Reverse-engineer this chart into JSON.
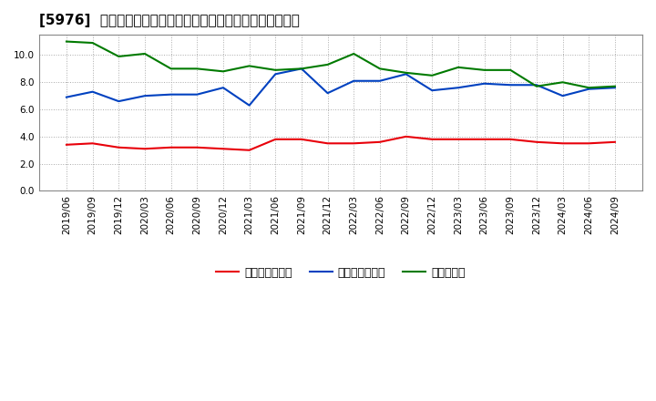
{
  "title": "[5976]  売上債権回転率、買入債務回転率、在庫回転率の推移",
  "x_labels": [
    "2019/06",
    "2019/09",
    "2019/12",
    "2020/03",
    "2020/06",
    "2020/09",
    "2020/12",
    "2021/03",
    "2021/06",
    "2021/09",
    "2021/12",
    "2022/03",
    "2022/06",
    "2022/09",
    "2022/12",
    "2023/03",
    "2023/06",
    "2023/09",
    "2023/12",
    "2024/03",
    "2024/06",
    "2024/09"
  ],
  "sales_receivables": [
    3.4,
    3.5,
    3.2,
    3.1,
    3.2,
    3.2,
    3.1,
    3.0,
    3.8,
    3.8,
    3.5,
    3.5,
    3.6,
    4.0,
    3.8,
    3.8,
    3.8,
    3.8,
    3.6,
    3.5,
    3.5,
    3.6
  ],
  "payables": [
    6.9,
    7.3,
    6.6,
    7.0,
    7.1,
    7.1,
    7.6,
    6.3,
    8.6,
    9.0,
    7.2,
    8.1,
    8.1,
    8.6,
    7.4,
    7.6,
    7.9,
    7.8,
    7.8,
    7.0,
    7.5,
    7.6
  ],
  "inventory": [
    11.0,
    10.9,
    9.9,
    10.1,
    9.0,
    9.0,
    8.8,
    9.2,
    8.9,
    9.0,
    9.3,
    10.1,
    9.0,
    8.7,
    8.5,
    9.1,
    8.9,
    8.9,
    7.7,
    8.0,
    7.6,
    7.7
  ],
  "color_red": "#e8000a",
  "color_blue": "#0041c0",
  "color_green": "#007a00",
  "legend_labels": [
    "売上債権回転率",
    "買入債務回転率",
    "在庫回転率"
  ],
  "ylim": [
    0.0,
    11.5
  ],
  "yticks": [
    0.0,
    2.0,
    4.0,
    6.0,
    8.0,
    10.0
  ],
  "background_color": "#ffffff",
  "grid_color": "#aaaaaa",
  "title_fontsize": 11,
  "tick_fontsize": 7.5,
  "legend_fontsize": 9
}
